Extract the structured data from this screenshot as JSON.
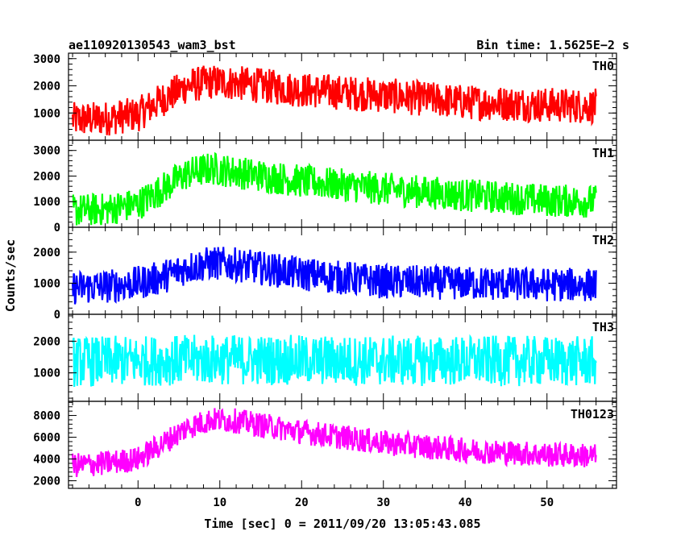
{
  "chart_data": {
    "type": "line",
    "title_left": "ae110920130543_wam3_bst",
    "title_right": "Bin time: 1.5625E−2 s",
    "xlabel": "Time [sec] 0 = 2011/09/20 13:05:43.085",
    "ylabel": "Counts/sec",
    "xlim": [
      -8.5,
      58.5
    ],
    "x_ticks": [
      0,
      10,
      20,
      30,
      40,
      50
    ],
    "x_data_range": [
      -8,
      56
    ],
    "grid": false,
    "panels": [
      {
        "name": "TH0",
        "color": "#ff0000",
        "ylim": [
          0,
          3200
        ],
        "y_ticks": [
          1000,
          2000,
          3000
        ],
        "profile_t": [
          -8,
          -4,
          0,
          3,
          6,
          9,
          12,
          20,
          30,
          40,
          50,
          56
        ],
        "profile_mean": [
          750,
          800,
          950,
          1500,
          2000,
          2150,
          2100,
          1850,
          1650,
          1400,
          1300,
          1250
        ],
        "noise_half_range": 650
      },
      {
        "name": "TH1",
        "color": "#00ff00",
        "ylim": [
          0,
          3400
        ],
        "y_ticks": [
          0,
          1000,
          2000,
          3000
        ],
        "profile_t": [
          -8,
          -4,
          0,
          3,
          6,
          9,
          12,
          20,
          30,
          40,
          50,
          56
        ],
        "profile_mean": [
          650,
          700,
          900,
          1500,
          2100,
          2300,
          2150,
          1800,
          1500,
          1250,
          1050,
          1000
        ],
        "noise_half_range": 650
      },
      {
        "name": "TH2",
        "color": "#0000ff",
        "ylim": [
          0,
          2800
        ],
        "y_ticks": [
          0,
          1000,
          2000
        ],
        "profile_t": [
          -8,
          -4,
          0,
          3,
          6,
          9,
          12,
          20,
          30,
          40,
          50,
          56
        ],
        "profile_mean": [
          850,
          900,
          1000,
          1200,
          1500,
          1650,
          1600,
          1300,
          1050,
          1000,
          950,
          950
        ],
        "noise_half_range": 550
      },
      {
        "name": "TH3",
        "color": "#00ffff",
        "ylim": [
          100,
          2850
        ],
        "y_ticks": [
          1000,
          2000
        ],
        "profile_t": [
          -8,
          0,
          10,
          20,
          30,
          40,
          50,
          56
        ],
        "profile_mean": [
          1350,
          1380,
          1420,
          1400,
          1380,
          1380,
          1370,
          1360
        ],
        "noise_half_range": 800
      },
      {
        "name": "TH0123",
        "color": "#ff00ff",
        "ylim": [
          1300,
          9300
        ],
        "y_ticks": [
          2000,
          4000,
          6000,
          8000
        ],
        "profile_t": [
          -8,
          -4,
          0,
          3,
          6,
          9,
          12,
          20,
          30,
          40,
          50,
          56
        ],
        "profile_mean": [
          3400,
          3600,
          4000,
          5400,
          6900,
          7600,
          7500,
          6500,
          5500,
          4800,
          4400,
          4300
        ],
        "noise_half_range": 1150
      }
    ]
  }
}
